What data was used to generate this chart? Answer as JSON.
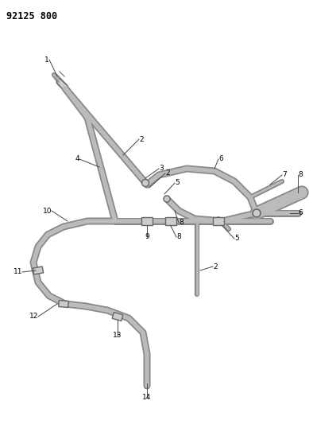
{
  "title": "92125 800",
  "bg": "#ffffff",
  "tube_color": "#bbbbbb",
  "tube_edge": "#888888",
  "line_color": "#444444",
  "text_color": "#000000",
  "fig_w": 3.89,
  "fig_h": 5.33,
  "dpi": 100,
  "tube_lw": 7,
  "tube_lw_med": 5,
  "tube_lw_thin": 3,
  "leader_lw": 0.7,
  "num_fs": 6.5,
  "title_fs": 8.5,
  "clip_color": "#cccccc",
  "clip_edge": "#666666"
}
